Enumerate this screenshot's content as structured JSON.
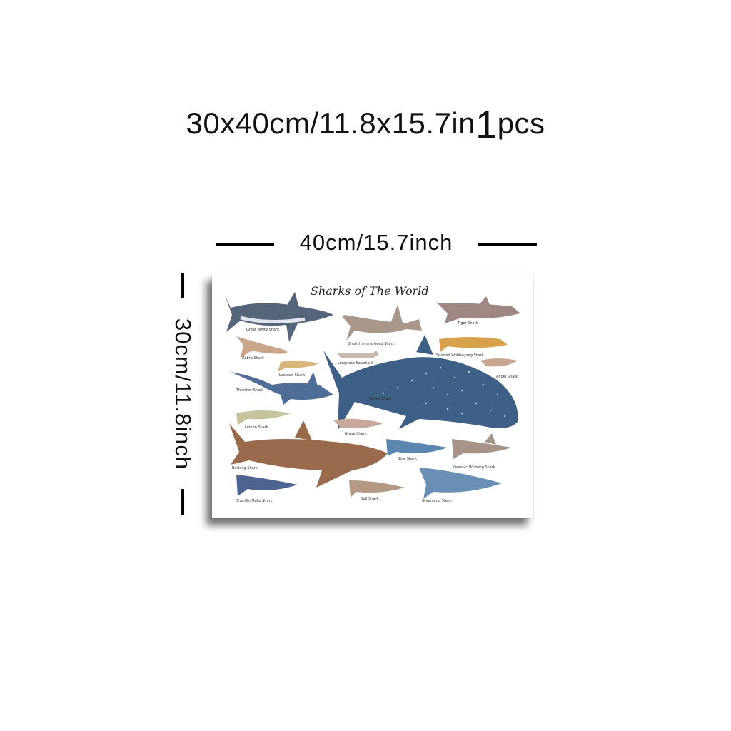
{
  "headline": {
    "size_text": "30x40cm/11.8x15.7in",
    "quantity_number": "1",
    "quantity_unit": "pcs"
  },
  "dimensions": {
    "width_label": "40cm/15.7inch",
    "height_label": "30cm/11.8inch"
  },
  "poster": {
    "title": "Sharks of The World",
    "sharks": [
      "Great White Shark",
      "Great Hammerhead Shark",
      "Tiger Shark",
      "Zebra Shark",
      "Longnose Sawshark",
      "Spotted Wobbegong Shark",
      "Leopard Shark",
      "Angel Shark",
      "Thresher Shark",
      "Whale Shark",
      "Lemon Shark",
      "Nurse Shark",
      "Basking Shark",
      "Blue Shark",
      "Oceanic Whitetip Shark",
      "Shortfin Mako Shark",
      "Bull Shark",
      "Greenland Shark"
    ]
  },
  "colors": {
    "whale_shark": "#3e5f86",
    "great_white": "#55657a",
    "basking": "#9a6a4c",
    "blue_shark": "#5b86b0",
    "tan_shark": "#b49a84",
    "spotted_yellow": "#d8a24c"
  }
}
